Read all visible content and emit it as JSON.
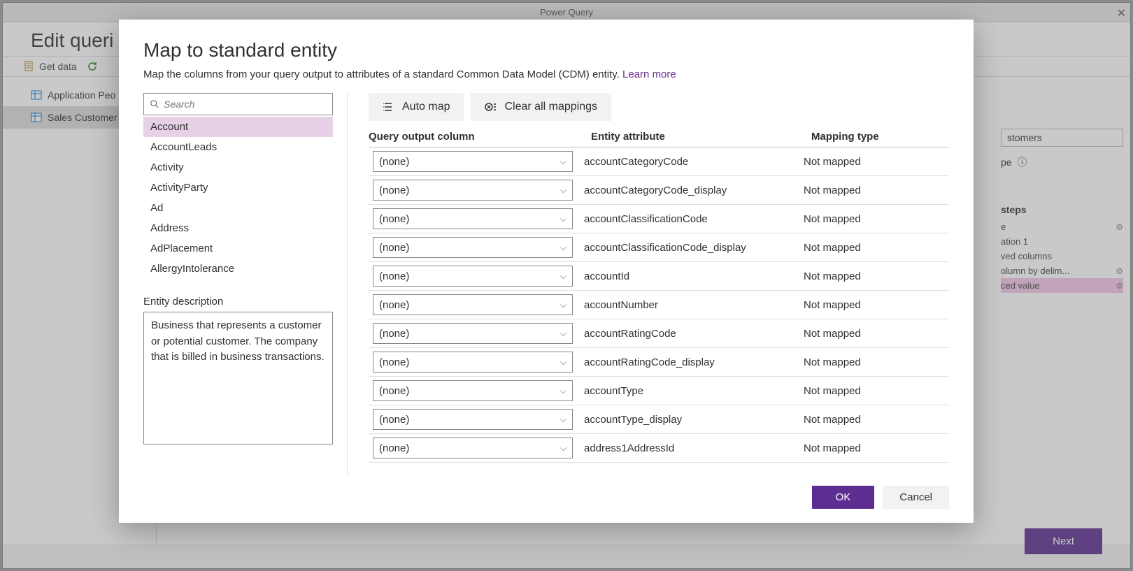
{
  "bg": {
    "window_title": "Power Query",
    "page_title": "Edit queri",
    "toolbar": {
      "get_data": "Get data"
    },
    "nav": {
      "items": [
        {
          "label": "Application Peo"
        },
        {
          "label": "Sales Customer"
        }
      ]
    },
    "right_panel": {
      "name_val": "stomers",
      "type_label": "pe",
      "steps_head": "steps",
      "steps": [
        {
          "label": "e",
          "gear": true
        },
        {
          "label": "ation 1",
          "gear": false
        },
        {
          "label": "ved columns",
          "gear": false
        },
        {
          "label": "olumn by delim...",
          "gear": true
        },
        {
          "label": "ced value",
          "gear": true,
          "selected": true
        }
      ]
    },
    "next_btn": "Next"
  },
  "modal": {
    "title": "Map to standard entity",
    "subtitle": "Map the columns from your query output to attributes of a standard Common Data Model (CDM) entity. ",
    "learn_more": "Learn more",
    "search_placeholder": "Search",
    "entities": [
      "Account",
      "AccountLeads",
      "Activity",
      "ActivityParty",
      "Ad",
      "Address",
      "AdPlacement",
      "AllergyIntolerance"
    ],
    "selected_entity_index": 0,
    "desc_label": "Entity description",
    "desc_text": "Business that represents a customer or potential customer. The company that is billed in business transactions.",
    "auto_map": "Auto map",
    "clear_all": "Clear all mappings",
    "head_q": "Query output column",
    "head_e": "Entity attribute",
    "head_m": "Mapping type",
    "none_label": "(none)",
    "not_mapped": "Not mapped",
    "attrs": [
      "accountCategoryCode",
      "accountCategoryCode_display",
      "accountClassificationCode",
      "accountClassificationCode_display",
      "accountId",
      "accountNumber",
      "accountRatingCode",
      "accountRatingCode_display",
      "accountType",
      "accountType_display",
      "address1AddressId"
    ],
    "ok": "OK",
    "cancel": "Cancel"
  }
}
